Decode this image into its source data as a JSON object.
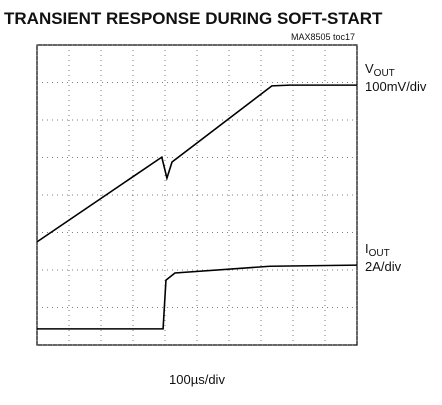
{
  "chart_data": {
    "type": "line",
    "title": "TRANSIENT RESPONSE DURING SOFT-START",
    "note": "MAX8505 toc17",
    "x_label": "100µs/div",
    "xlim": [
      0,
      10
    ],
    "ylim": [
      0,
      8
    ],
    "xticks": [
      0,
      1,
      2,
      3,
      4,
      5,
      6,
      7,
      8,
      9,
      10
    ],
    "yticks": [
      0,
      1,
      2,
      3,
      4,
      5,
      6,
      7,
      8
    ],
    "grid": true,
    "series": [
      {
        "name": "VOUT",
        "scale": "100mV/div",
        "color": "#000000",
        "x": [
          0,
          3.9,
          4.06,
          4.22,
          7.34,
          7.9,
          10
        ],
        "values": [
          2.75,
          5.01,
          4.45,
          4.88,
          6.91,
          6.93,
          6.93
        ]
      },
      {
        "name": "IOUT",
        "scale": "2A/div",
        "color": "#000000",
        "x": [
          0,
          3.94,
          4.03,
          4.31,
          7.28,
          10
        ],
        "values": [
          0.43,
          0.43,
          1.73,
          1.92,
          2.1,
          2.13
        ]
      }
    ]
  }
}
